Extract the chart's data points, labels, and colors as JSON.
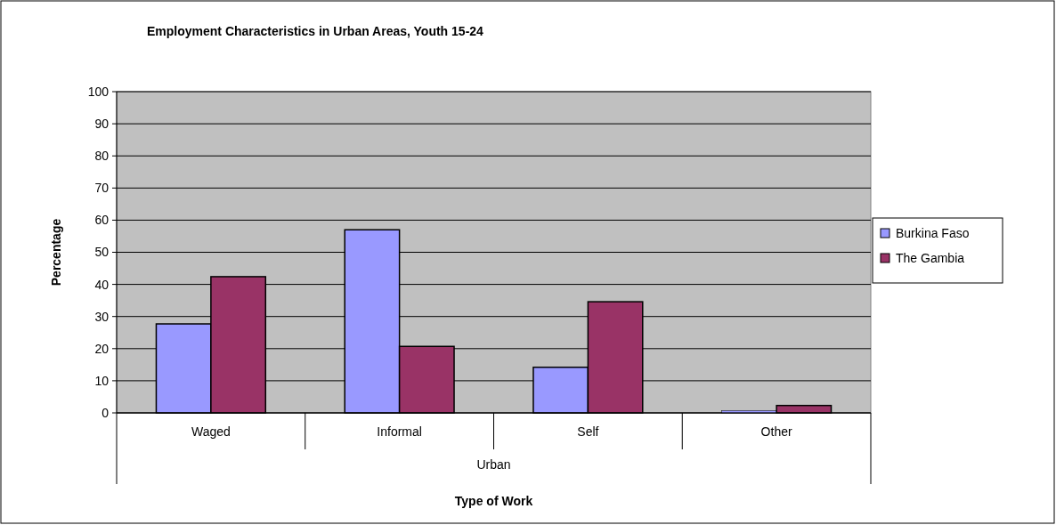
{
  "chart_data": {
    "type": "bar",
    "title": "Employment Characteristics in Urban Areas, Youth 15-24",
    "xlabel": "Type of Work",
    "ylabel": "Percentage",
    "annotations": [
      "Urban"
    ],
    "categories": [
      "Waged",
      "Informal",
      "Self",
      "Other"
    ],
    "series": [
      {
        "name": "Burkina Faso",
        "color": "#9999ff",
        "values": [
          27.7,
          57.0,
          14.2,
          0.7
        ]
      },
      {
        "name": "The Gambia",
        "color": "#993366",
        "values": [
          42.4,
          20.7,
          34.6,
          2.3
        ]
      }
    ],
    "ylim": [
      0,
      100
    ],
    "yticks": [
      0,
      10,
      20,
      30,
      40,
      50,
      60,
      70,
      80,
      90,
      100
    ],
    "grid": "y",
    "legend": "right"
  }
}
